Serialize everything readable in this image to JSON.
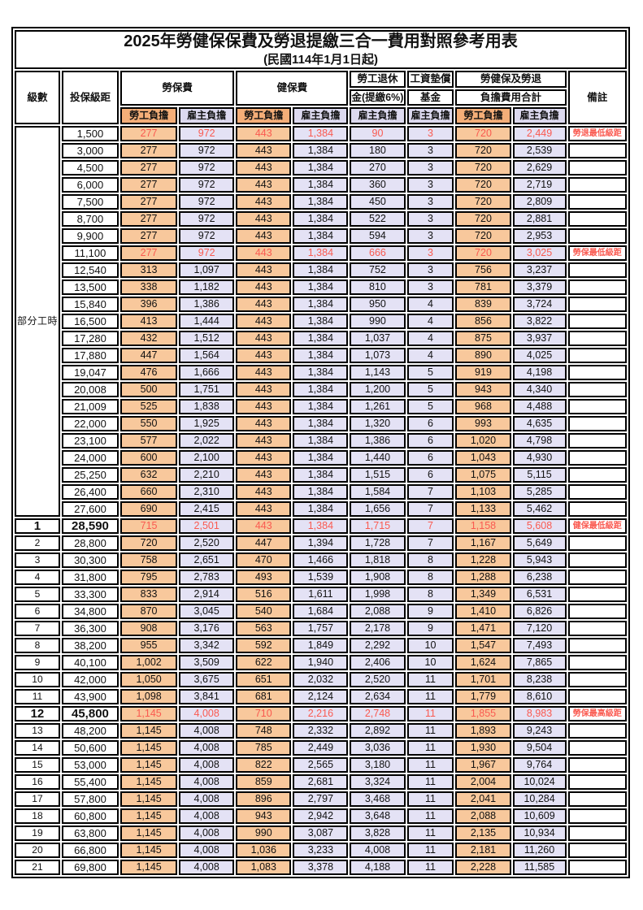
{
  "page": {
    "title": "2025年勞健保保費及勞退提繳三合一費用對照參考用表",
    "subtitle": "(民國114年1月1日起)"
  },
  "colors": {
    "worker_header_bg": "#F4AE78",
    "worker_cell_bg": "#F8C89C",
    "employer_header_bg": "#DCD9EF",
    "employer_cell_bg": "#E4E2F5",
    "highlight_text": "#FA5A50",
    "border": "#000000"
  },
  "table": {
    "headers": {
      "level": "級數",
      "bracket": "投保級距",
      "labor_fee": "勞保費",
      "health_fee": "健保費",
      "pension_line1": "勞工退休",
      "pension_line2": "金(提繳6%)",
      "wage_fund_line1": "工資墊償",
      "wage_fund_line2": "基金",
      "total_line1": "勞健保及勞退",
      "total_line2": "負擔費用合計",
      "remark": "備註",
      "worker": "勞工負擔",
      "employer": "雇主負擔"
    },
    "part_time_label": "部分工時",
    "part_time_rowspan": 23,
    "value_column_kinds": [
      "w",
      "e",
      "w",
      "e",
      "e",
      "e",
      "w",
      "e"
    ],
    "rows": [
      {
        "bracket": "1,500",
        "values": [
          "277",
          "972",
          "443",
          "1,384",
          "90",
          "3",
          "720",
          "2,449"
        ],
        "remark": "勞退最低級距",
        "highlight": true
      },
      {
        "bracket": "3,000",
        "values": [
          "277",
          "972",
          "443",
          "1,384",
          "180",
          "3",
          "720",
          "2,539"
        ]
      },
      {
        "bracket": "4,500",
        "values": [
          "277",
          "972",
          "443",
          "1,384",
          "270",
          "3",
          "720",
          "2,629"
        ]
      },
      {
        "bracket": "6,000",
        "values": [
          "277",
          "972",
          "443",
          "1,384",
          "360",
          "3",
          "720",
          "2,719"
        ]
      },
      {
        "bracket": "7,500",
        "values": [
          "277",
          "972",
          "443",
          "1,384",
          "450",
          "3",
          "720",
          "2,809"
        ]
      },
      {
        "bracket": "8,700",
        "values": [
          "277",
          "972",
          "443",
          "1,384",
          "522",
          "3",
          "720",
          "2,881"
        ]
      },
      {
        "bracket": "9,900",
        "values": [
          "277",
          "972",
          "443",
          "1,384",
          "594",
          "3",
          "720",
          "2,953"
        ]
      },
      {
        "bracket": "11,100",
        "values": [
          "277",
          "972",
          "443",
          "1,384",
          "666",
          "3",
          "720",
          "3,025"
        ],
        "remark": "勞保最低級距",
        "highlight": true
      },
      {
        "bracket": "12,540",
        "values": [
          "313",
          "1,097",
          "443",
          "1,384",
          "752",
          "3",
          "756",
          "3,237"
        ]
      },
      {
        "bracket": "13,500",
        "values": [
          "338",
          "1,182",
          "443",
          "1,384",
          "810",
          "3",
          "781",
          "3,379"
        ]
      },
      {
        "bracket": "15,840",
        "values": [
          "396",
          "1,386",
          "443",
          "1,384",
          "950",
          "4",
          "839",
          "3,724"
        ]
      },
      {
        "bracket": "16,500",
        "values": [
          "413",
          "1,444",
          "443",
          "1,384",
          "990",
          "4",
          "856",
          "3,822"
        ]
      },
      {
        "bracket": "17,280",
        "values": [
          "432",
          "1,512",
          "443",
          "1,384",
          "1,037",
          "4",
          "875",
          "3,937"
        ]
      },
      {
        "bracket": "17,880",
        "values": [
          "447",
          "1,564",
          "443",
          "1,384",
          "1,073",
          "4",
          "890",
          "4,025"
        ]
      },
      {
        "bracket": "19,047",
        "values": [
          "476",
          "1,666",
          "443",
          "1,384",
          "1,143",
          "5",
          "919",
          "4,198"
        ]
      },
      {
        "bracket": "20,008",
        "values": [
          "500",
          "1,751",
          "443",
          "1,384",
          "1,200",
          "5",
          "943",
          "4,340"
        ]
      },
      {
        "bracket": "21,009",
        "values": [
          "525",
          "1,838",
          "443",
          "1,384",
          "1,261",
          "5",
          "968",
          "4,488"
        ]
      },
      {
        "bracket": "22,000",
        "values": [
          "550",
          "1,925",
          "443",
          "1,384",
          "1,320",
          "6",
          "993",
          "4,635"
        ]
      },
      {
        "bracket": "23,100",
        "values": [
          "577",
          "2,022",
          "443",
          "1,384",
          "1,386",
          "6",
          "1,020",
          "4,798"
        ]
      },
      {
        "bracket": "24,000",
        "values": [
          "600",
          "2,100",
          "443",
          "1,384",
          "1,440",
          "6",
          "1,043",
          "4,930"
        ]
      },
      {
        "bracket": "25,250",
        "values": [
          "632",
          "2,210",
          "443",
          "1,384",
          "1,515",
          "6",
          "1,075",
          "5,115"
        ]
      },
      {
        "bracket": "26,400",
        "values": [
          "660",
          "2,310",
          "443",
          "1,384",
          "1,584",
          "7",
          "1,103",
          "5,285"
        ]
      },
      {
        "bracket": "27,600",
        "values": [
          "690",
          "2,415",
          "443",
          "1,384",
          "1,656",
          "7",
          "1,133",
          "5,462"
        ]
      },
      {
        "level": "1",
        "bracket": "28,590",
        "values": [
          "715",
          "2,501",
          "443",
          "1,384",
          "1,715",
          "7",
          "1,158",
          "5,608"
        ],
        "remark": "健保最低級距",
        "highlight": true,
        "big": true
      },
      {
        "level": "2",
        "bracket": "28,800",
        "values": [
          "720",
          "2,520",
          "447",
          "1,394",
          "1,728",
          "7",
          "1,167",
          "5,649"
        ]
      },
      {
        "level": "3",
        "bracket": "30,300",
        "values": [
          "758",
          "2,651",
          "470",
          "1,466",
          "1,818",
          "8",
          "1,228",
          "5,943"
        ]
      },
      {
        "level": "4",
        "bracket": "31,800",
        "values": [
          "795",
          "2,783",
          "493",
          "1,539",
          "1,908",
          "8",
          "1,288",
          "6,238"
        ]
      },
      {
        "level": "5",
        "bracket": "33,300",
        "values": [
          "833",
          "2,914",
          "516",
          "1,611",
          "1,998",
          "8",
          "1,349",
          "6,531"
        ]
      },
      {
        "level": "6",
        "bracket": "34,800",
        "values": [
          "870",
          "3,045",
          "540",
          "1,684",
          "2,088",
          "9",
          "1,410",
          "6,826"
        ]
      },
      {
        "level": "7",
        "bracket": "36,300",
        "values": [
          "908",
          "3,176",
          "563",
          "1,757",
          "2,178",
          "9",
          "1,471",
          "7,120"
        ]
      },
      {
        "level": "8",
        "bracket": "38,200",
        "values": [
          "955",
          "3,342",
          "592",
          "1,849",
          "2,292",
          "10",
          "1,547",
          "7,493"
        ]
      },
      {
        "level": "9",
        "bracket": "40,100",
        "values": [
          "1,002",
          "3,509",
          "622",
          "1,940",
          "2,406",
          "10",
          "1,624",
          "7,865"
        ]
      },
      {
        "level": "10",
        "bracket": "42,000",
        "values": [
          "1,050",
          "3,675",
          "651",
          "2,032",
          "2,520",
          "11",
          "1,701",
          "8,238"
        ]
      },
      {
        "level": "11",
        "bracket": "43,900",
        "values": [
          "1,098",
          "3,841",
          "681",
          "2,124",
          "2,634",
          "11",
          "1,779",
          "8,610"
        ]
      },
      {
        "level": "12",
        "bracket": "45,800",
        "values": [
          "1,145",
          "4,008",
          "710",
          "2,216",
          "2,748",
          "11",
          "1,855",
          "8,983"
        ],
        "remark": "勞保最高級距",
        "highlight": true,
        "big": true
      },
      {
        "level": "13",
        "bracket": "48,200",
        "values": [
          "1,145",
          "4,008",
          "748",
          "2,332",
          "2,892",
          "11",
          "1,893",
          "9,243"
        ]
      },
      {
        "level": "14",
        "bracket": "50,600",
        "values": [
          "1,145",
          "4,008",
          "785",
          "2,449",
          "3,036",
          "11",
          "1,930",
          "9,504"
        ]
      },
      {
        "level": "15",
        "bracket": "53,000",
        "values": [
          "1,145",
          "4,008",
          "822",
          "2,565",
          "3,180",
          "11",
          "1,967",
          "9,764"
        ]
      },
      {
        "level": "16",
        "bracket": "55,400",
        "values": [
          "1,145",
          "4,008",
          "859",
          "2,681",
          "3,324",
          "11",
          "2,004",
          "10,024"
        ]
      },
      {
        "level": "17",
        "bracket": "57,800",
        "values": [
          "1,145",
          "4,008",
          "896",
          "2,797",
          "3,468",
          "11",
          "2,041",
          "10,284"
        ]
      },
      {
        "level": "18",
        "bracket": "60,800",
        "values": [
          "1,145",
          "4,008",
          "943",
          "2,942",
          "3,648",
          "11",
          "2,088",
          "10,609"
        ]
      },
      {
        "level": "19",
        "bracket": "63,800",
        "values": [
          "1,145",
          "4,008",
          "990",
          "3,087",
          "3,828",
          "11",
          "2,135",
          "10,934"
        ]
      },
      {
        "level": "20",
        "bracket": "66,800",
        "values": [
          "1,145",
          "4,008",
          "1,036",
          "3,233",
          "4,008",
          "11",
          "2,181",
          "11,260"
        ]
      },
      {
        "level": "21",
        "bracket": "69,800",
        "values": [
          "1,145",
          "4,008",
          "1,083",
          "3,378",
          "4,188",
          "11",
          "2,228",
          "11,585"
        ]
      }
    ]
  }
}
